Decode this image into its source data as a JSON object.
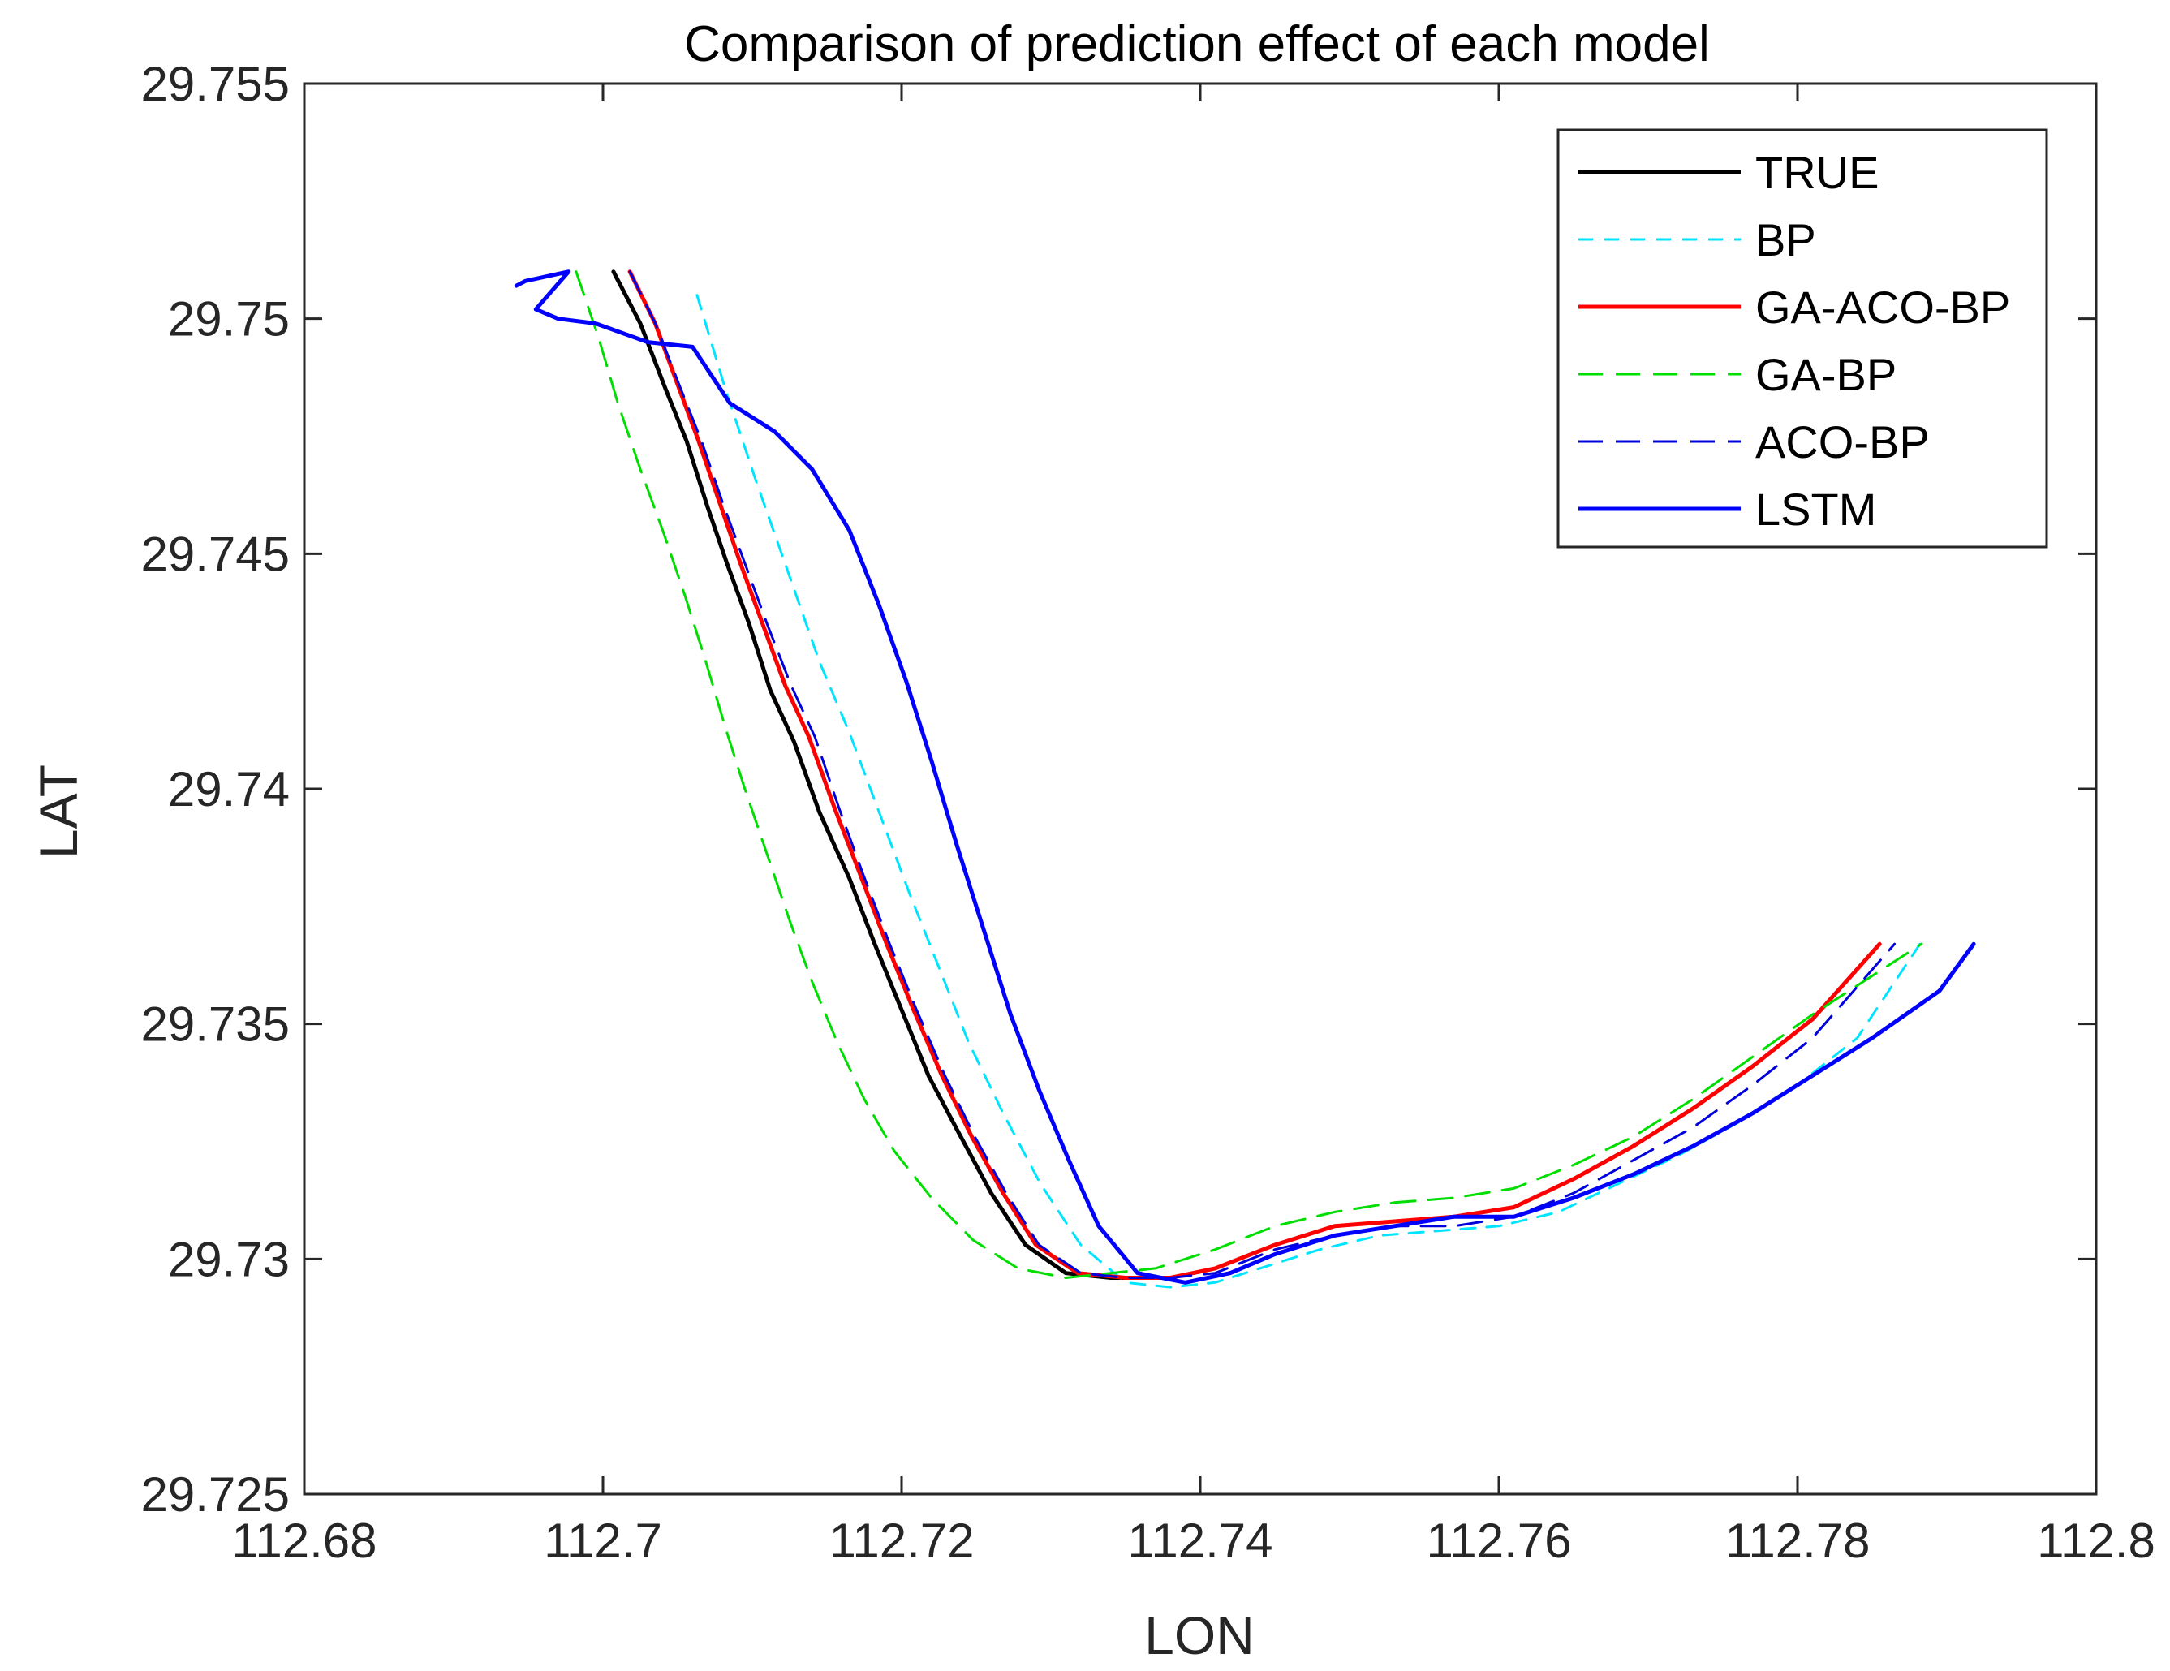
{
  "chart_data": {
    "type": "line",
    "title": "Comparison of prediction effect of each model",
    "xlabel": "LON",
    "ylabel": "LAT",
    "xlim": [
      112.68,
      112.8
    ],
    "ylim": [
      29.725,
      29.755
    ],
    "xticks": [
      112.68,
      112.7,
      112.72,
      112.74,
      112.76,
      112.78,
      112.8
    ],
    "xtick_labels": [
      "112.68",
      "112.7",
      "112.72",
      "112.74",
      "112.76",
      "112.78",
      "112.8"
    ],
    "yticks": [
      29.725,
      29.73,
      29.735,
      29.74,
      29.745,
      29.75,
      29.755
    ],
    "ytick_labels": [
      "29.725",
      "29.73",
      "29.735",
      "29.74",
      "29.745",
      "29.75",
      "29.755"
    ],
    "legend_position": "top-right",
    "series": [
      {
        "name": "TRUE",
        "color": "#000000",
        "dash": "solid",
        "points": [
          [
            112.7007,
            29.751
          ],
          [
            112.7025,
            29.7499
          ],
          [
            112.7042,
            29.7485
          ],
          [
            112.7056,
            29.7474
          ],
          [
            112.707,
            29.746
          ],
          [
            112.7083,
            29.7448
          ],
          [
            112.7098,
            29.7435
          ],
          [
            112.7112,
            29.7421
          ],
          [
            112.7128,
            29.741
          ],
          [
            112.7145,
            29.7395
          ],
          [
            112.7165,
            29.7381
          ],
          [
            112.7182,
            29.7367
          ],
          [
            112.72,
            29.7353
          ],
          [
            112.7218,
            29.7339
          ],
          [
            112.7238,
            29.7327
          ],
          [
            112.726,
            29.7314
          ],
          [
            112.7283,
            29.7303
          ],
          [
            112.731,
            29.7297
          ],
          [
            112.734,
            29.7296
          ],
          [
            112.737,
            29.7296
          ]
        ]
      },
      {
        "name": "BP",
        "color": "#00e5ff",
        "dash": "short",
        "points": [
          [
            112.7063,
            29.7505
          ],
          [
            112.7082,
            29.7485
          ],
          [
            112.7103,
            29.7465
          ],
          [
            112.7123,
            29.7447
          ],
          [
            112.7145,
            29.7427
          ],
          [
            112.7165,
            29.7412
          ],
          [
            112.7185,
            29.7395
          ],
          [
            112.7205,
            29.7378
          ],
          [
            112.7225,
            29.7362
          ],
          [
            112.7245,
            29.7346
          ],
          [
            112.7268,
            29.7331
          ],
          [
            112.7293,
            29.7316
          ],
          [
            112.732,
            29.7303
          ],
          [
            112.735,
            29.7295
          ],
          [
            112.738,
            29.7294
          ],
          [
            112.741,
            29.7295
          ],
          [
            112.744,
            29.7298
          ],
          [
            112.748,
            29.7302
          ],
          [
            112.752,
            29.7305
          ],
          [
            112.756,
            29.7306
          ],
          [
            112.76,
            29.7307
          ],
          [
            112.764,
            29.731
          ],
          [
            112.768,
            29.7316
          ],
          [
            112.772,
            29.7322
          ],
          [
            112.776,
            29.7329
          ],
          [
            112.78,
            29.7337
          ],
          [
            112.784,
            29.7347
          ],
          [
            112.7882,
            29.7367
          ]
        ]
      },
      {
        "name": "GA-ACO-BP",
        "color": "#ff0000",
        "dash": "solid",
        "points": [
          [
            112.7018,
            29.751
          ],
          [
            112.7035,
            29.7499
          ],
          [
            112.705,
            29.7486
          ],
          [
            112.7064,
            29.7474
          ],
          [
            112.7078,
            29.7461
          ],
          [
            112.7092,
            29.7448
          ],
          [
            112.7107,
            29.7435
          ],
          [
            112.7122,
            29.7422
          ],
          [
            112.7138,
            29.7411
          ],
          [
            112.7155,
            29.7396
          ],
          [
            112.7172,
            29.7382
          ],
          [
            112.719,
            29.7367
          ],
          [
            112.7208,
            29.7353
          ],
          [
            112.7227,
            29.7339
          ],
          [
            112.7247,
            29.7326
          ],
          [
            112.7268,
            29.7314
          ],
          [
            112.729,
            29.7303
          ],
          [
            112.7318,
            29.7297
          ],
          [
            112.735,
            29.7296
          ],
          [
            112.738,
            29.7296
          ],
          [
            112.741,
            29.7298
          ],
          [
            112.745,
            29.7303
          ],
          [
            112.749,
            29.7307
          ],
          [
            112.753,
            29.7308
          ],
          [
            112.757,
            29.7309
          ],
          [
            112.761,
            29.7311
          ],
          [
            112.765,
            29.7317
          ],
          [
            112.769,
            29.7324
          ],
          [
            112.773,
            29.7332
          ],
          [
            112.777,
            29.7341
          ],
          [
            112.781,
            29.7351
          ],
          [
            112.7855,
            29.7367
          ]
        ]
      },
      {
        "name": "GA-BP",
        "color": "#00dd00",
        "dash": "medium",
        "points": [
          [
            112.6982,
            29.751
          ],
          [
            112.6997,
            29.7496
          ],
          [
            112.701,
            29.7482
          ],
          [
            112.7025,
            29.7468
          ],
          [
            112.704,
            29.7455
          ],
          [
            112.7055,
            29.7441
          ],
          [
            112.7068,
            29.7428
          ],
          [
            112.7082,
            29.7413
          ],
          [
            112.7095,
            29.74
          ],
          [
            112.711,
            29.7386
          ],
          [
            112.7125,
            29.7372
          ],
          [
            112.714,
            29.7359
          ],
          [
            112.7157,
            29.7346
          ],
          [
            112.7175,
            29.7334
          ],
          [
            112.7195,
            29.7323
          ],
          [
            112.722,
            29.7313
          ],
          [
            112.7248,
            29.7304
          ],
          [
            112.7278,
            29.7298
          ],
          [
            112.731,
            29.7296
          ],
          [
            112.734,
            29.7297
          ],
          [
            112.737,
            29.7298
          ],
          [
            112.741,
            29.7302
          ],
          [
            112.745,
            29.7307
          ],
          [
            112.749,
            29.731
          ],
          [
            112.753,
            29.7312
          ],
          [
            112.757,
            29.7313
          ],
          [
            112.761,
            29.7315
          ],
          [
            112.765,
            29.732
          ],
          [
            112.769,
            29.7326
          ],
          [
            112.773,
            29.7334
          ],
          [
            112.777,
            29.7343
          ],
          [
            112.781,
            29.7352
          ],
          [
            112.7883,
            29.7367
          ]
        ]
      },
      {
        "name": "ACO-BP",
        "color": "#0000dd",
        "dash": "medium",
        "points": [
          [
            112.7018,
            29.751
          ],
          [
            112.7035,
            29.7499
          ],
          [
            112.7051,
            29.7486
          ],
          [
            112.7066,
            29.7474
          ],
          [
            112.708,
            29.7461
          ],
          [
            112.7095,
            29.7448
          ],
          [
            112.711,
            29.7435
          ],
          [
            112.7126,
            29.7422
          ],
          [
            112.7142,
            29.7411
          ],
          [
            112.7158,
            29.7396
          ],
          [
            112.7174,
            29.7382
          ],
          [
            112.7192,
            29.7367
          ],
          [
            112.721,
            29.7353
          ],
          [
            112.7229,
            29.7339
          ],
          [
            112.7249,
            29.7326
          ],
          [
            112.727,
            29.7314
          ],
          [
            112.7292,
            29.7303
          ],
          [
            112.732,
            29.7297
          ],
          [
            112.735,
            29.7296
          ],
          [
            112.738,
            29.7296
          ],
          [
            112.741,
            29.7297
          ],
          [
            112.745,
            29.7302
          ],
          [
            112.749,
            29.7305
          ],
          [
            112.753,
            29.7307
          ],
          [
            112.757,
            29.7307
          ],
          [
            112.761,
            29.7309
          ],
          [
            112.765,
            29.7314
          ],
          [
            112.769,
            29.7321
          ],
          [
            112.773,
            29.7328
          ],
          [
            112.777,
            29.7337
          ],
          [
            112.781,
            29.7347
          ],
          [
            112.7865,
            29.7367
          ]
        ]
      },
      {
        "name": "LSTM",
        "color": "#0000ff",
        "dash": "solid",
        "points": [
          [
            112.6942,
            29.7507
          ],
          [
            112.6948,
            29.7508
          ],
          [
            112.6977,
            29.751
          ],
          [
            112.6955,
            29.7502
          ],
          [
            112.697,
            29.75
          ],
          [
            112.6995,
            29.7499
          ],
          [
            112.703,
            29.7495
          ],
          [
            112.706,
            29.7494
          ],
          [
            112.7085,
            29.7482
          ],
          [
            112.7115,
            29.7476
          ],
          [
            112.714,
            29.7468
          ],
          [
            112.7165,
            29.7455
          ],
          [
            112.7185,
            29.7439
          ],
          [
            112.7203,
            29.7423
          ],
          [
            112.722,
            29.7406
          ],
          [
            112.7237,
            29.7388
          ],
          [
            112.7255,
            29.737
          ],
          [
            112.7273,
            29.7352
          ],
          [
            112.7292,
            29.7336
          ],
          [
            112.7312,
            29.7321
          ],
          [
            112.7332,
            29.7307
          ],
          [
            112.7358,
            29.7297
          ],
          [
            112.739,
            29.7295
          ],
          [
            112.742,
            29.7297
          ],
          [
            112.745,
            29.7301
          ],
          [
            112.749,
            29.7305
          ],
          [
            112.753,
            29.7307
          ],
          [
            112.757,
            29.7309
          ],
          [
            112.761,
            29.7309
          ],
          [
            112.765,
            29.7313
          ],
          [
            112.769,
            29.7318
          ],
          [
            112.773,
            29.7324
          ],
          [
            112.777,
            29.7331
          ],
          [
            112.781,
            29.7339
          ],
          [
            112.785,
            29.7347
          ],
          [
            112.7895,
            29.7357
          ],
          [
            112.7918,
            29.7367
          ]
        ]
      }
    ]
  }
}
